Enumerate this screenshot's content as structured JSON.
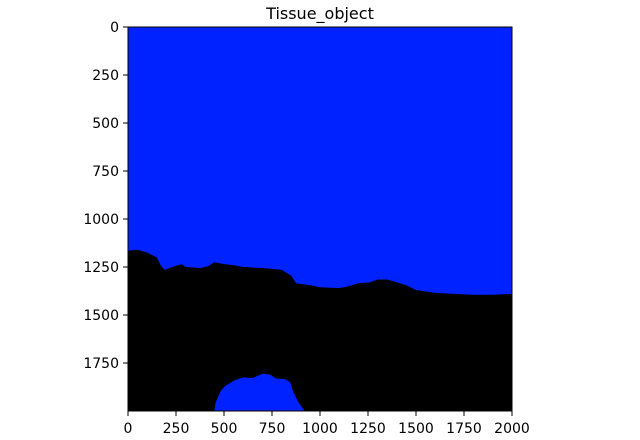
{
  "chart_data": {
    "type": "heatmap",
    "title": "Tissue_object",
    "xlabel": "",
    "ylabel": "",
    "xlim": [
      0,
      2000
    ],
    "ylim": [
      2000,
      0
    ],
    "y_inverted": true,
    "grid": false,
    "legend": "none",
    "x_ticks": [
      0,
      250,
      500,
      750,
      1000,
      1250,
      1500,
      1750,
      2000
    ],
    "y_ticks": [
      0,
      250,
      500,
      750,
      1000,
      1250,
      1500,
      1750
    ],
    "colors": {
      "background_region": "#0022ff",
      "tissue_region": "#000000"
    },
    "regions": [
      {
        "label_value": "background",
        "color": "#0022ff",
        "boundary": [
          [
            0,
            1165
          ],
          [
            50,
            1160
          ],
          [
            100,
            1175
          ],
          [
            150,
            1200
          ],
          [
            170,
            1240
          ],
          [
            190,
            1265
          ],
          [
            230,
            1250
          ],
          [
            280,
            1235
          ],
          [
            300,
            1250
          ],
          [
            380,
            1255
          ],
          [
            420,
            1245
          ],
          [
            450,
            1225
          ],
          [
            500,
            1235
          ],
          [
            550,
            1240
          ],
          [
            600,
            1250
          ],
          [
            700,
            1255
          ],
          [
            750,
            1260
          ],
          [
            800,
            1265
          ],
          [
            850,
            1295
          ],
          [
            875,
            1335
          ],
          [
            950,
            1345
          ],
          [
            1000,
            1355
          ],
          [
            1100,
            1360
          ],
          [
            1150,
            1350
          ],
          [
            1200,
            1335
          ],
          [
            1260,
            1330
          ],
          [
            1300,
            1315
          ],
          [
            1350,
            1315
          ],
          [
            1400,
            1330
          ],
          [
            1450,
            1345
          ],
          [
            1500,
            1370
          ],
          [
            1600,
            1385
          ],
          [
            1700,
            1390
          ],
          [
            1800,
            1395
          ],
          [
            1900,
            1395
          ],
          [
            2000,
            1390
          ]
        ]
      },
      {
        "label_value": "background_pocket",
        "color": "#0022ff",
        "outline": [
          [
            450,
            2000
          ],
          [
            455,
            1960
          ],
          [
            480,
            1900
          ],
          [
            505,
            1870
          ],
          [
            555,
            1840
          ],
          [
            600,
            1825
          ],
          [
            650,
            1828
          ],
          [
            700,
            1805
          ],
          [
            740,
            1810
          ],
          [
            770,
            1830
          ],
          [
            820,
            1835
          ],
          [
            845,
            1850
          ],
          [
            860,
            1900
          ],
          [
            885,
            1950
          ],
          [
            920,
            2000
          ]
        ]
      }
    ]
  }
}
